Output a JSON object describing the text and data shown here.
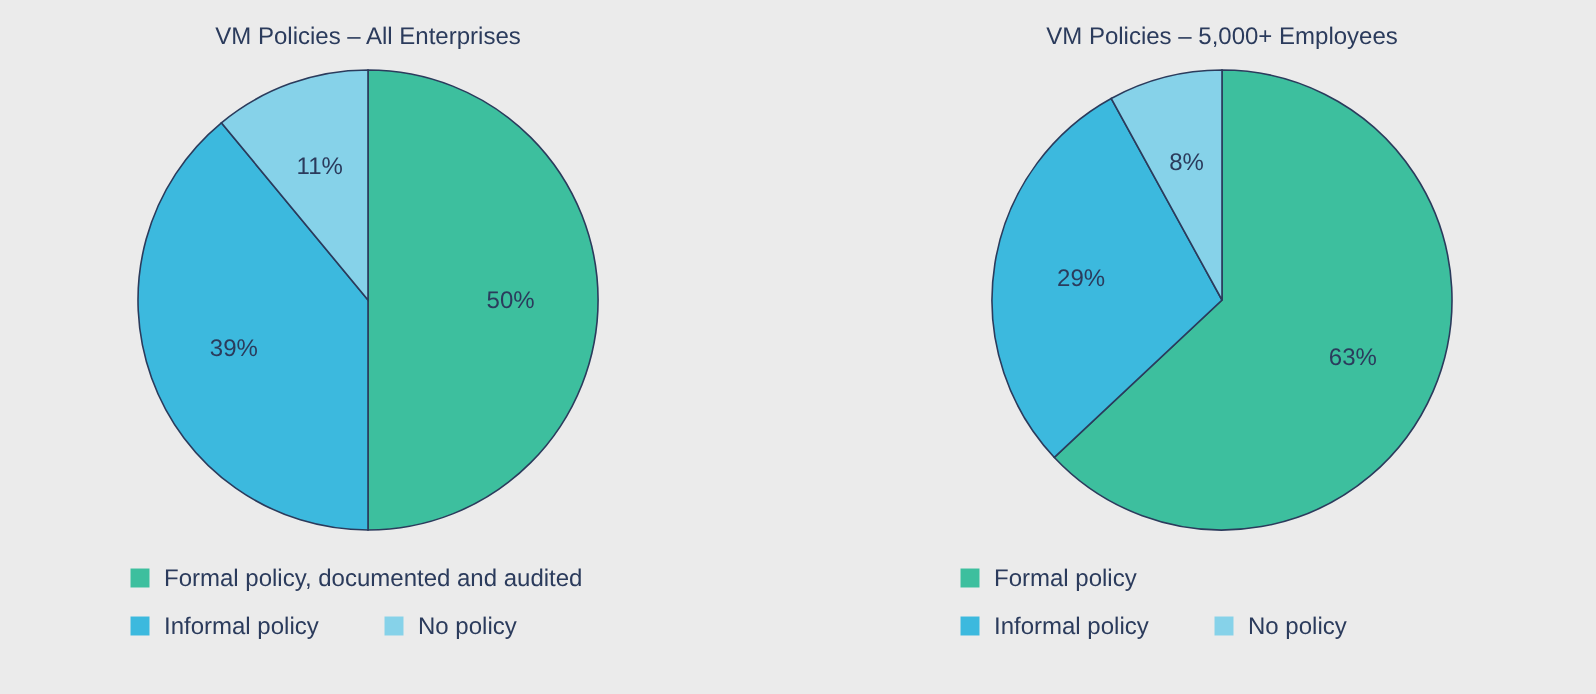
{
  "chart_data": [
    {
      "type": "pie",
      "title": "VM Policies – All Enterprises",
      "categories": [
        "Formal policy, documented and audited",
        "Informal policy",
        "No policy"
      ],
      "values": [
        50,
        39,
        11
      ],
      "colors": [
        "#3dbf9e",
        "#3cb9de",
        "#86d2e9"
      ],
      "value_labels": [
        "50%",
        "39%",
        "11%"
      ],
      "legend": "bottom"
    },
    {
      "type": "pie",
      "title": "VM Policies – 5,000+ Employees",
      "categories": [
        "Formal policy",
        "Informal policy",
        "No policy"
      ],
      "values": [
        63,
        29,
        8
      ],
      "colors": [
        "#3dbf9e",
        "#3cb9de",
        "#86d2e9"
      ],
      "value_labels": [
        "63%",
        "29%",
        "8%"
      ],
      "legend": "bottom"
    }
  ]
}
